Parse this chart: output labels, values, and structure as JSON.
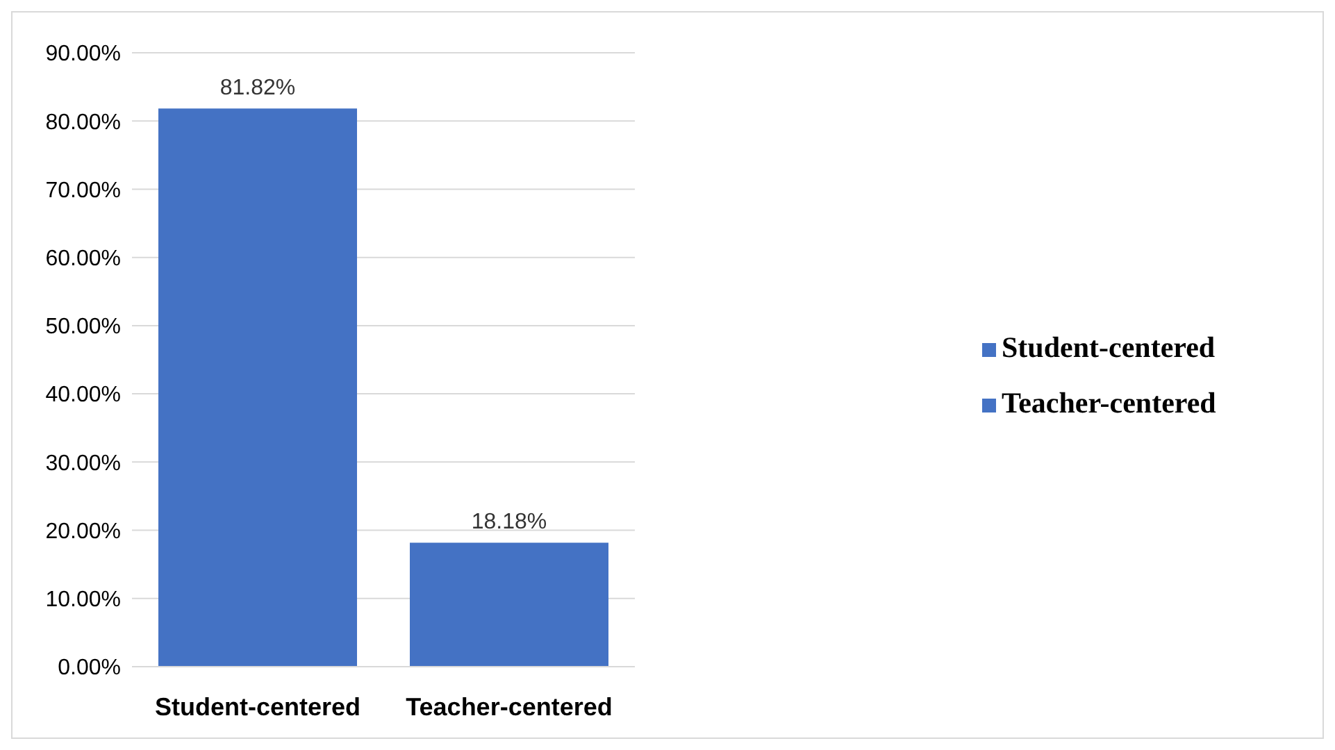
{
  "chart_data": {
    "type": "bar",
    "categories": [
      "Student-centered",
      "Teacher-centered"
    ],
    "stacked": true,
    "series": [
      {
        "name": "Student-centered",
        "color": "#4472c4",
        "values": [
          81.82,
          null
        ],
        "value_labels": [
          "81.82%",
          null
        ]
      },
      {
        "name": "Teacher-centered",
        "color": "#4472c4",
        "values": [
          null,
          18.18
        ],
        "value_labels": [
          null,
          "18.18%"
        ]
      }
    ],
    "ylim": [
      0,
      90
    ],
    "yticks": [
      {
        "value": 0,
        "label": "0.00%"
      },
      {
        "value": 10,
        "label": "10.00%"
      },
      {
        "value": 20,
        "label": "20.00%"
      },
      {
        "value": 30,
        "label": "30.00%"
      },
      {
        "value": 40,
        "label": "40.00%"
      },
      {
        "value": 50,
        "label": "50.00%"
      },
      {
        "value": 60,
        "label": "60.00%"
      },
      {
        "value": 70,
        "label": "70.00%"
      },
      {
        "value": 80,
        "label": "80.00%"
      },
      {
        "value": 90,
        "label": "90.00%"
      }
    ],
    "grid": "y",
    "legend": "right"
  }
}
